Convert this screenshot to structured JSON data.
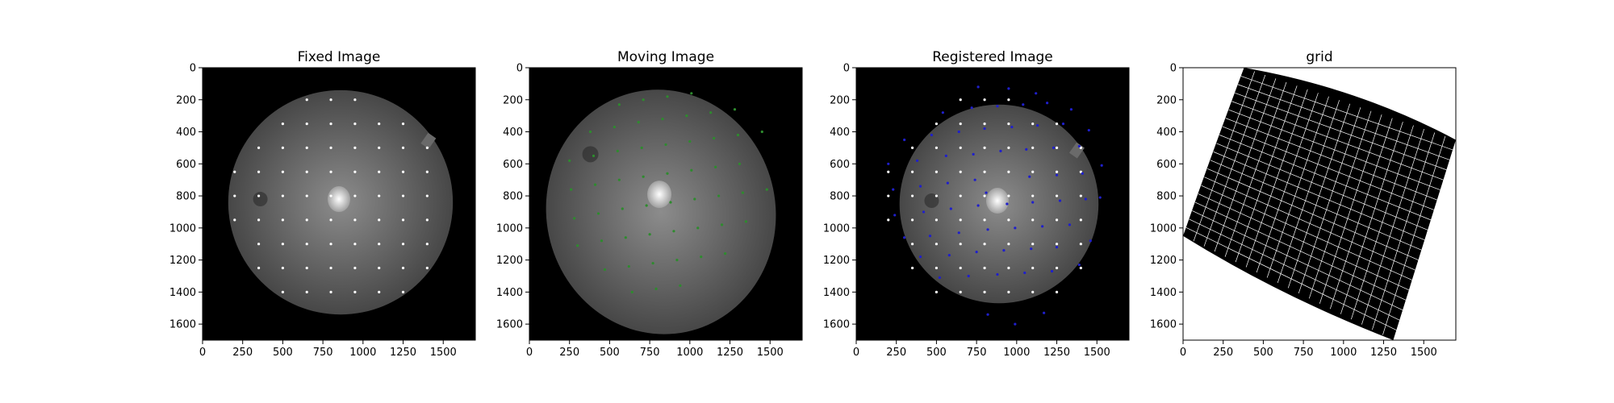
{
  "figure": {
    "panels": [
      {
        "title": "Fixed Image"
      },
      {
        "title": "Moving Image"
      },
      {
        "title": "Registered Image"
      },
      {
        "title": "grid"
      }
    ]
  },
  "colors": {
    "background": "#ffffff",
    "image_background": "#000000",
    "fixed_points": "#ffffff",
    "moving_points": "#2e8b2e",
    "registered_points": "#1f1fcc",
    "grid_lines": "#ffffff",
    "axis": "#000000"
  },
  "chart_data": [
    {
      "type": "scatter",
      "title": "Fixed Image",
      "xlim": [
        0,
        1700
      ],
      "ylim": [
        1700,
        0
      ],
      "xticks": [
        0,
        250,
        500,
        750,
        1000,
        1250,
        1500
      ],
      "yticks": [
        0,
        200,
        400,
        600,
        800,
        1000,
        1200,
        1400,
        1600
      ],
      "background_image": "retinal fundus photograph, disc centered near (860, 840)",
      "series": [
        {
          "marker_color": "#ffffff",
          "x": [
            650,
            800,
            950,
            500,
            650,
            800,
            950,
            1100,
            1250,
            350,
            500,
            650,
            800,
            950,
            1100,
            1250,
            1400,
            200,
            350,
            500,
            650,
            800,
            950,
            1100,
            1250,
            1400,
            200,
            350,
            500,
            650,
            800,
            950,
            1100,
            1250,
            1400,
            200,
            350,
            500,
            650,
            800,
            950,
            1100,
            1250,
            1400,
            350,
            500,
            650,
            800,
            950,
            1100,
            1250,
            1400,
            350,
            500,
            650,
            800,
            950,
            1100,
            1250,
            1400,
            500,
            650,
            800,
            950,
            1100,
            1250
          ],
          "y": [
            200,
            200,
            200,
            350,
            350,
            350,
            350,
            350,
            350,
            500,
            500,
            500,
            500,
            500,
            500,
            500,
            500,
            650,
            650,
            650,
            650,
            650,
            650,
            650,
            650,
            650,
            800,
            800,
            800,
            800,
            800,
            800,
            800,
            800,
            800,
            950,
            950,
            950,
            950,
            950,
            950,
            950,
            950,
            950,
            1100,
            1100,
            1100,
            1100,
            1100,
            1100,
            1100,
            1100,
            1250,
            1250,
            1250,
            1250,
            1250,
            1250,
            1250,
            1250,
            1400,
            1400,
            1400,
            1400,
            1400,
            1400
          ]
        }
      ]
    },
    {
      "type": "scatter",
      "title": "Moving Image",
      "xlim": [
        0,
        1700
      ],
      "ylim": [
        1700,
        0
      ],
      "xticks": [
        0,
        250,
        500,
        750,
        1000,
        1250,
        1500
      ],
      "yticks": [
        0,
        200,
        400,
        600,
        800,
        1000,
        1200,
        1400,
        1600
      ],
      "background_image": "rotated retinal fundus photograph, disc near (810, 790)",
      "series": [
        {
          "marker_color": "#2e8b2e",
          "x": [
            560,
            710,
            860,
            1010,
            380,
            530,
            680,
            830,
            980,
            1130,
            1280,
            250,
            400,
            550,
            700,
            850,
            1000,
            1150,
            1300,
            1450,
            260,
            410,
            560,
            710,
            860,
            1010,
            1160,
            1310,
            280,
            430,
            580,
            730,
            880,
            1030,
            1180,
            1330,
            1480,
            300,
            450,
            600,
            750,
            900,
            1050,
            1200,
            1350,
            470,
            620,
            770,
            920,
            1070,
            1220,
            640,
            790,
            940
          ],
          "y": [
            230,
            200,
            180,
            160,
            400,
            370,
            340,
            320,
            300,
            280,
            260,
            580,
            550,
            520,
            500,
            480,
            460,
            440,
            420,
            400,
            760,
            730,
            700,
            680,
            660,
            640,
            620,
            600,
            940,
            910,
            880,
            860,
            840,
            820,
            800,
            780,
            760,
            1110,
            1080,
            1060,
            1040,
            1020,
            1000,
            980,
            960,
            1260,
            1240,
            1220,
            1200,
            1180,
            1160,
            1400,
            1380,
            1360
          ]
        }
      ]
    },
    {
      "type": "scatter",
      "title": "Registered Image",
      "xlim": [
        0,
        1700
      ],
      "ylim": [
        1700,
        0
      ],
      "xticks": [
        0,
        250,
        500,
        750,
        1000,
        1250,
        1500
      ],
      "yticks": [
        0,
        200,
        400,
        600,
        800,
        1000,
        1200,
        1400,
        1600
      ],
      "background_image": "registered retinal fundus photograph, disc centered near (860, 840)",
      "series": [
        {
          "marker_color": "#ffffff",
          "x": [
            650,
            800,
            950,
            500,
            650,
            800,
            950,
            1100,
            1250,
            350,
            500,
            650,
            800,
            950,
            1100,
            1250,
            1400,
            200,
            350,
            500,
            650,
            800,
            950,
            1100,
            1250,
            1400,
            200,
            350,
            500,
            650,
            800,
            950,
            1100,
            1250,
            1400,
            200,
            350,
            500,
            650,
            800,
            950,
            1100,
            1250,
            1400,
            350,
            500,
            650,
            800,
            950,
            1100,
            1250,
            1400,
            350,
            500,
            650,
            800,
            950,
            1100,
            1250,
            1400,
            500,
            650,
            800,
            950,
            1100,
            1250
          ],
          "y": [
            200,
            200,
            200,
            350,
            350,
            350,
            350,
            350,
            350,
            500,
            500,
            500,
            500,
            500,
            500,
            500,
            500,
            650,
            650,
            650,
            650,
            650,
            650,
            650,
            650,
            650,
            800,
            800,
            800,
            800,
            800,
            800,
            800,
            800,
            800,
            950,
            950,
            950,
            950,
            950,
            950,
            950,
            950,
            950,
            1100,
            1100,
            1100,
            1100,
            1100,
            1100,
            1100,
            1100,
            1250,
            1250,
            1250,
            1250,
            1250,
            1250,
            1250,
            1250,
            1400,
            1400,
            1400,
            1400,
            1400,
            1400
          ]
        },
        {
          "marker_color": "#1f1fcc",
          "x": [
            760,
            950,
            1120,
            540,
            720,
            880,
            1040,
            1190,
            1340,
            300,
            470,
            640,
            800,
            970,
            1130,
            1290,
            1450,
            200,
            380,
            560,
            730,
            900,
            1060,
            1230,
            1390,
            1530,
            230,
            400,
            570,
            740,
            810,
            1080,
            1250,
            1410,
            1520,
            240,
            420,
            590,
            760,
            940,
            1100,
            1270,
            1430,
            300,
            460,
            640,
            820,
            990,
            1160,
            1330,
            1460,
            400,
            580,
            750,
            920,
            1090,
            1250,
            1390,
            520,
            700,
            880,
            1050,
            1220,
            820,
            990,
            1170
          ],
          "y": [
            120,
            130,
            160,
            280,
            250,
            240,
            230,
            220,
            260,
            450,
            420,
            400,
            380,
            370,
            360,
            350,
            390,
            600,
            580,
            550,
            540,
            520,
            510,
            500,
            490,
            610,
            760,
            740,
            720,
            700,
            780,
            680,
            670,
            660,
            810,
            920,
            900,
            880,
            860,
            850,
            840,
            830,
            820,
            1060,
            1050,
            1030,
            1010,
            1000,
            990,
            980,
            1080,
            1180,
            1170,
            1150,
            1140,
            1130,
            1120,
            1230,
            1310,
            1300,
            1290,
            1280,
            1270,
            1540,
            1600,
            1530
          ]
        }
      ]
    },
    {
      "type": "heatmap",
      "title": "grid",
      "xlim": [
        0,
        1700
      ],
      "ylim": [
        1700,
        0
      ],
      "xticks": [
        0,
        250,
        500,
        750,
        1000,
        1250,
        1500
      ],
      "yticks": [
        0,
        200,
        400,
        600,
        800,
        1000,
        1200,
        1400,
        1600
      ],
      "deformed_grid_corners": {
        "top_left": [
          380,
          0
        ],
        "top_right": [
          1700,
          450
        ],
        "bottom_right": [
          1310,
          1700
        ],
        "bottom_left": [
          0,
          1050
        ]
      },
      "grid_lines": 20
    }
  ]
}
